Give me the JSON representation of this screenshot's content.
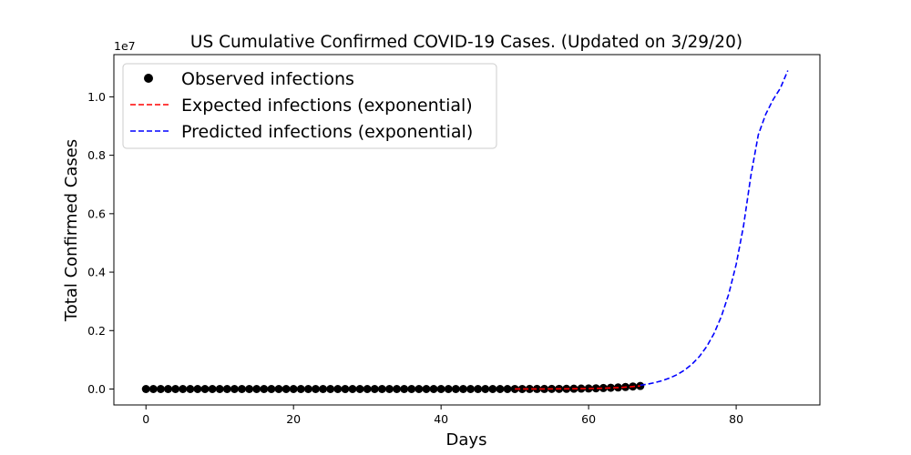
{
  "chart_data": {
    "type": "line",
    "title": "US Cumulative Confirmed COVID-19 Cases. (Updated on 3/29/20)",
    "xlabel": "Days",
    "ylabel": "Total Confirmed Cases",
    "y_multiplier_label": "1e7",
    "xlim": [
      -4.35,
      91.35
    ],
    "ylim": [
      -0.0545,
      1.1445
    ],
    "y_units": "1e7",
    "x_ticks": [
      0,
      20,
      40,
      60,
      80
    ],
    "x_tick_labels": [
      "0",
      "20",
      "40",
      "60",
      "80"
    ],
    "y_ticks": [
      0.0,
      0.2,
      0.4,
      0.6,
      0.8,
      1.0
    ],
    "y_tick_labels": [
      "0.0",
      "0.2",
      "0.4",
      "0.6",
      "0.8",
      "1.0"
    ],
    "grid": false,
    "legend_position": "top-left",
    "series": [
      {
        "name": "Observed infections",
        "style": "markers",
        "color": "#000000",
        "x": [
          0,
          1,
          2,
          3,
          4,
          5,
          6,
          7,
          8,
          9,
          10,
          11,
          12,
          13,
          14,
          15,
          16,
          17,
          18,
          19,
          20,
          21,
          22,
          23,
          24,
          25,
          26,
          27,
          28,
          29,
          30,
          31,
          32,
          33,
          34,
          35,
          36,
          37,
          38,
          39,
          40,
          41,
          42,
          43,
          44,
          45,
          46,
          47,
          48,
          49,
          50,
          51,
          52,
          53,
          54,
          55,
          56,
          57,
          58,
          59,
          60,
          61,
          62,
          63,
          64,
          65,
          66,
          67
        ],
        "values": [
          0,
          0,
          0,
          0,
          0,
          0,
          0,
          0,
          0,
          0,
          0,
          0,
          0,
          0,
          0,
          0,
          0,
          0,
          0,
          0,
          0,
          0,
          0,
          0,
          0,
          0,
          0,
          0,
          0,
          0,
          0,
          0,
          0,
          0,
          0,
          0,
          0,
          0,
          0,
          0,
          0,
          0,
          0,
          0,
          0,
          0,
          0,
          0,
          0,
          0,
          0.0001,
          0.0001,
          0.0002,
          0.0002,
          0.0003,
          0.0004,
          0.0005,
          0.0007,
          0.001,
          0.0014,
          0.0019,
          0.0025,
          0.0034,
          0.0044,
          0.0054,
          0.0069,
          0.0086,
          0.0104
        ]
      },
      {
        "name": "Expected infections (exponential)",
        "style": "dashed",
        "color": "#ff0000",
        "x": [
          50,
          52,
          54,
          56,
          58,
          60,
          61,
          62,
          63,
          64,
          65,
          66,
          67
        ],
        "values": [
          0.0001,
          0.0002,
          0.0003,
          0.0005,
          0.0009,
          0.0016,
          0.0021,
          0.0028,
          0.0037,
          0.0048,
          0.0063,
          0.0083,
          0.0108
        ]
      },
      {
        "name": "Predicted infections (exponential)",
        "style": "dashed",
        "color": "#0000ff",
        "x": [
          67,
          68,
          69,
          70,
          71,
          72,
          73,
          74,
          75,
          76,
          77,
          78,
          79,
          80,
          81,
          82,
          83,
          84,
          85,
          86,
          87
        ],
        "values": [
          0.0128,
          0.0168,
          0.022,
          0.0288,
          0.0377,
          0.0494,
          0.0647,
          0.0847,
          0.1108,
          0.1451,
          0.19,
          0.2488,
          0.3257,
          0.4265,
          0.5584,
          0.7311,
          0.87,
          0.94,
          0.99,
          1.03,
          1.09
        ]
      }
    ]
  }
}
